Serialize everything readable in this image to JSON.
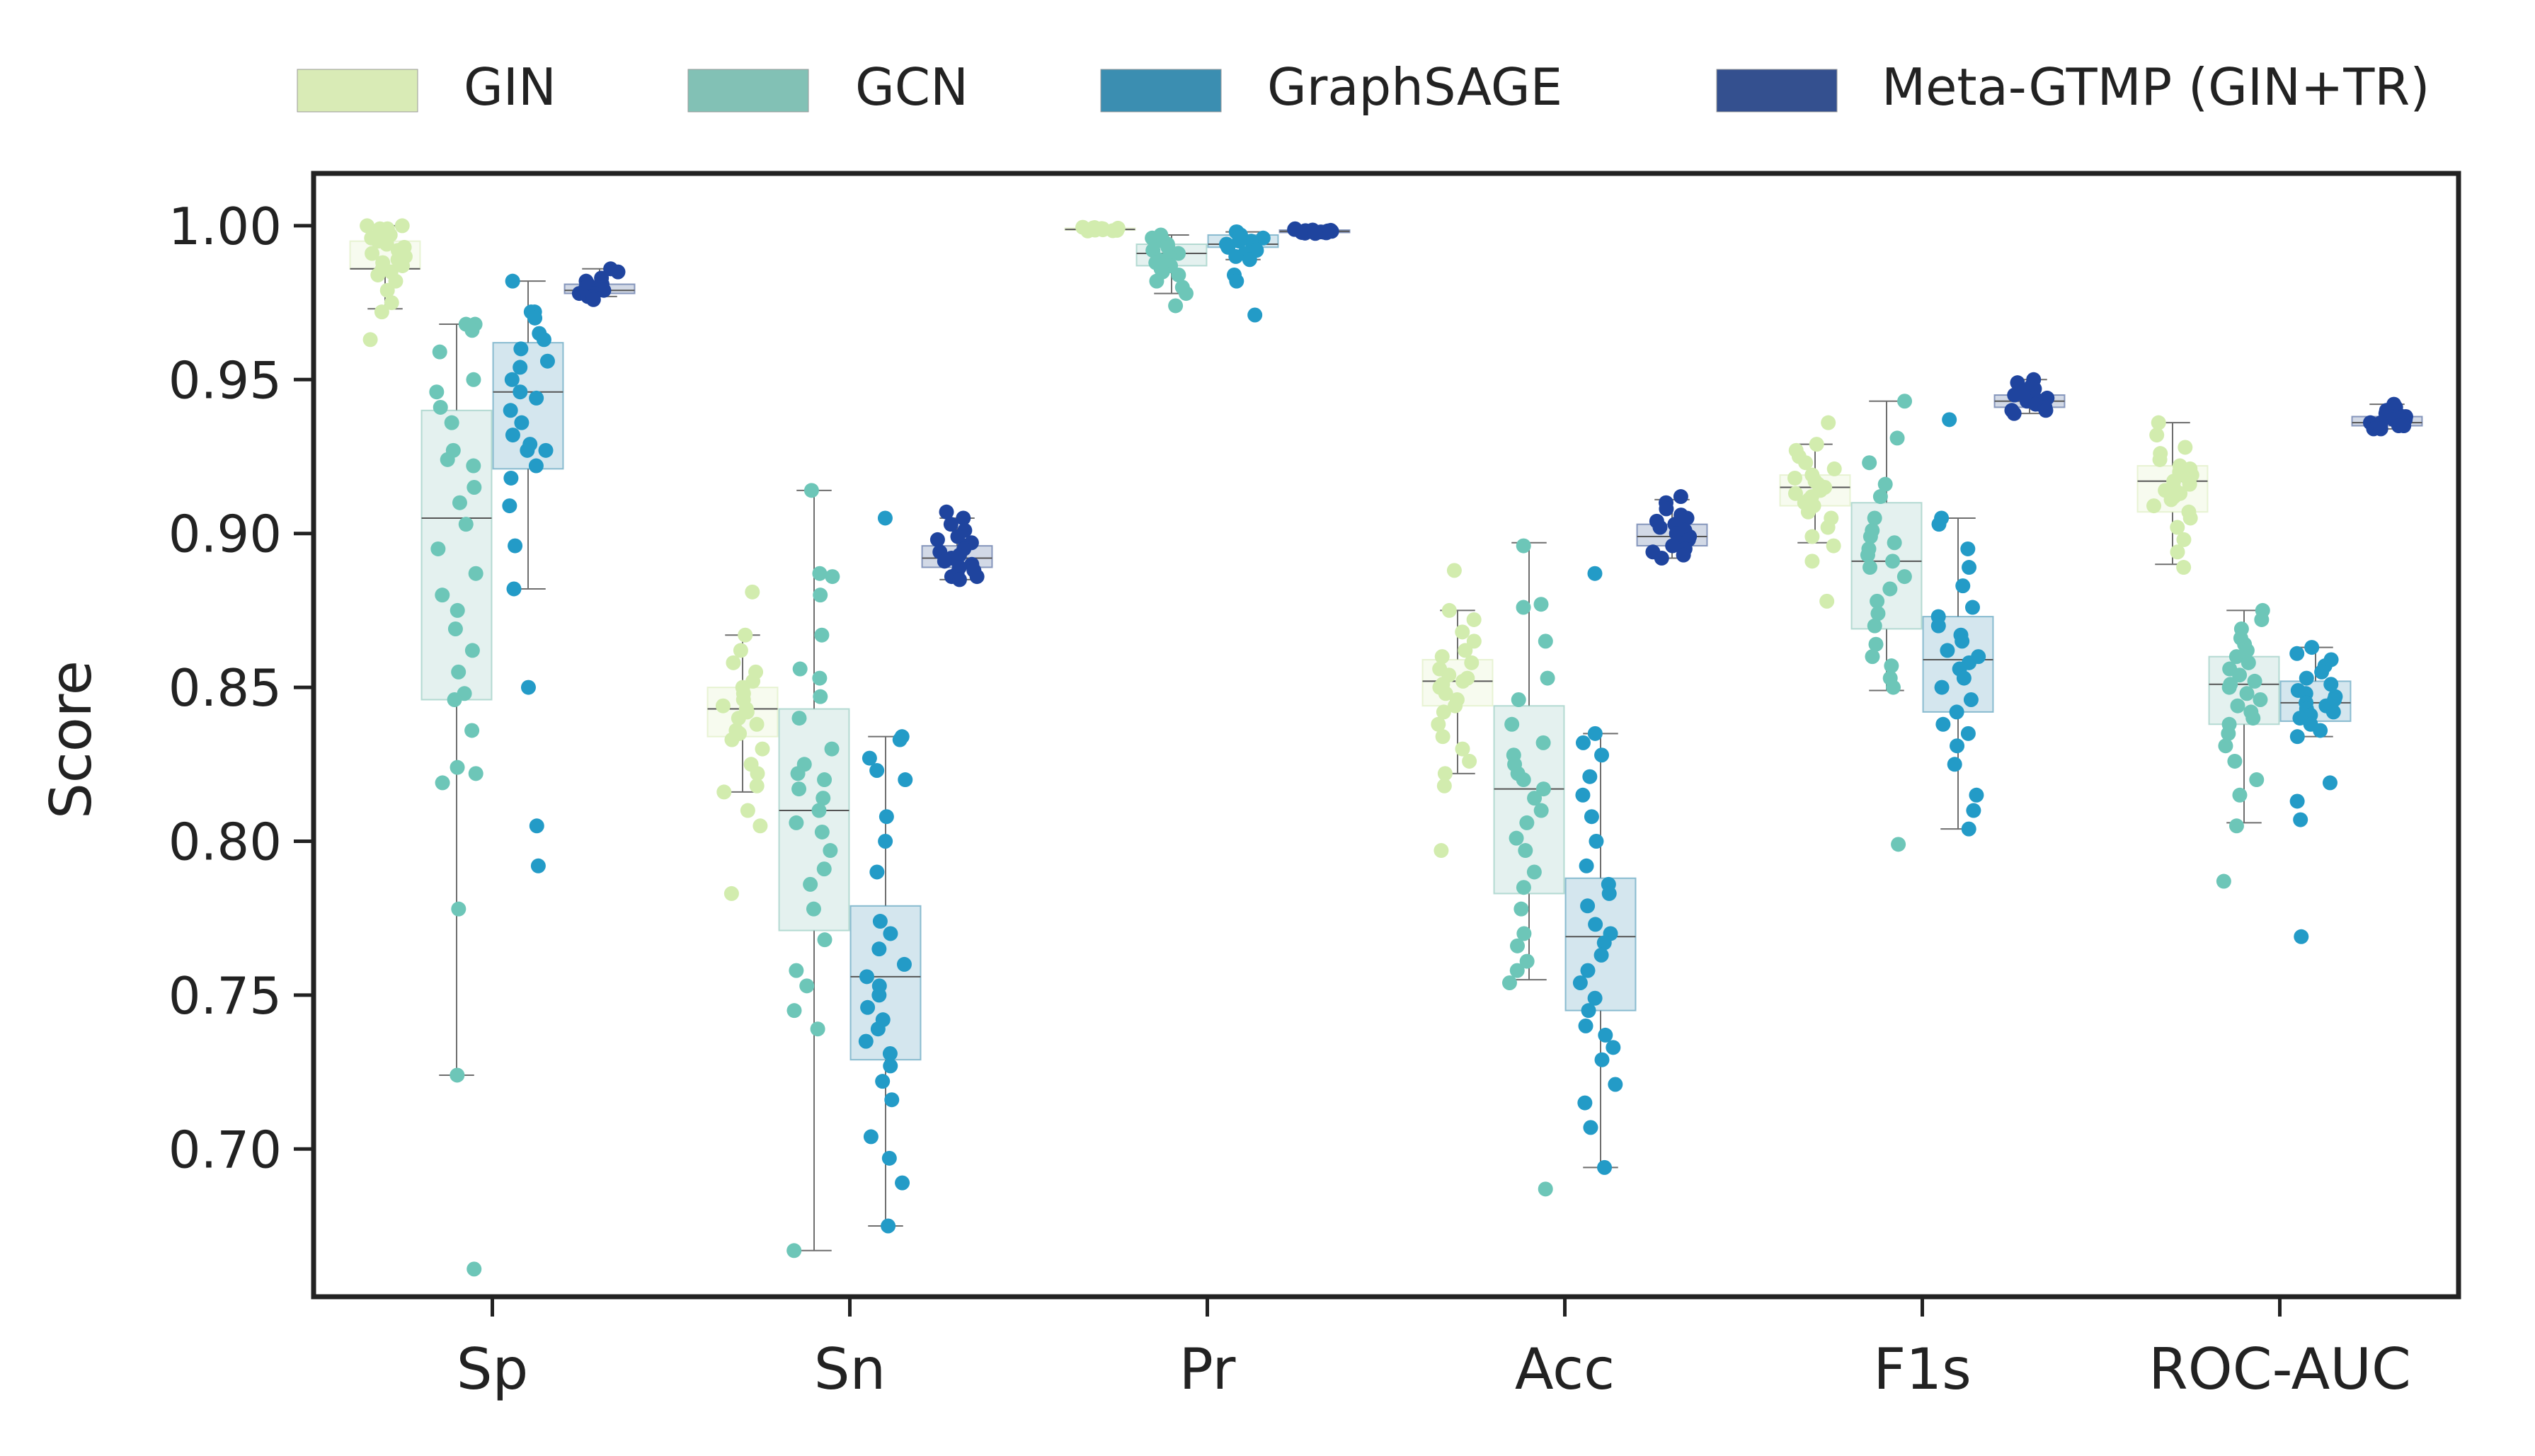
{
  "chart_data": {
    "type": "box",
    "title": "",
    "xlabel": "",
    "ylabel": "Score",
    "ylim": [
      0.652,
      1.017
    ],
    "yticks": [
      "1.00",
      "0.95",
      "0.90",
      "0.85",
      "0.80",
      "0.75",
      "0.70"
    ],
    "categories": [
      "Sp",
      "Sn",
      "Pr",
      "Acc",
      "F1s",
      "ROC-AUC"
    ],
    "legend": {
      "position": "top",
      "entries": [
        "GIN",
        "GCN",
        "GraphSAGE",
        "Meta-GTMP (GIN+TR)"
      ]
    },
    "series": [
      {
        "name": "GIN",
        "fill": "#d9ebb6",
        "point": "#d2ecae",
        "boxes": [
          {
            "q1": 0.986,
            "median": 0.986,
            "q3": 0.995,
            "wlo": 0.973,
            "whi": 1.0,
            "points": [
              1.0,
              1.0,
              0.999,
              0.999,
              0.998,
              0.997,
              0.996,
              0.995,
              0.994,
              0.993,
              0.992,
              0.991,
              0.99,
              0.989,
              0.988,
              0.987,
              0.986,
              0.985,
              0.984,
              0.982,
              0.979,
              0.975,
              0.972,
              0.963
            ]
          },
          {
            "q1": 0.834,
            "median": 0.843,
            "q3": 0.85,
            "wlo": 0.816,
            "whi": 0.867,
            "points": [
              0.881,
              0.867,
              0.862,
              0.858,
              0.855,
              0.852,
              0.85,
              0.848,
              0.846,
              0.844,
              0.843,
              0.842,
              0.84,
              0.838,
              0.836,
              0.835,
              0.833,
              0.83,
              0.825,
              0.822,
              0.818,
              0.816,
              0.81,
              0.805,
              0.783
            ]
          },
          {
            "q1": 0.9986,
            "median": 0.9988,
            "q3": 0.9992,
            "wlo": 0.9983,
            "whi": 0.9995,
            "points": [
              0.9995,
              0.9994,
              0.9993,
              0.9992,
              0.9991,
              0.999,
              0.9989,
              0.9988,
              0.9987,
              0.9986,
              0.9985,
              0.9984,
              0.9983
            ]
          },
          {
            "q1": 0.844,
            "median": 0.852,
            "q3": 0.859,
            "wlo": 0.822,
            "whi": 0.875,
            "points": [
              0.888,
              0.875,
              0.872,
              0.868,
              0.865,
              0.862,
              0.86,
              0.858,
              0.856,
              0.854,
              0.853,
              0.852,
              0.851,
              0.85,
              0.848,
              0.846,
              0.844,
              0.842,
              0.838,
              0.834,
              0.83,
              0.826,
              0.822,
              0.818,
              0.797
            ]
          },
          {
            "q1": 0.909,
            "median": 0.915,
            "q3": 0.919,
            "wlo": 0.897,
            "whi": 0.929,
            "points": [
              0.936,
              0.929,
              0.927,
              0.925,
              0.923,
              0.921,
              0.919,
              0.918,
              0.917,
              0.916,
              0.915,
              0.914,
              0.913,
              0.912,
              0.911,
              0.91,
              0.909,
              0.907,
              0.905,
              0.902,
              0.899,
              0.896,
              0.891,
              0.878
            ]
          },
          {
            "q1": 0.907,
            "median": 0.917,
            "q3": 0.922,
            "wlo": 0.89,
            "whi": 0.936,
            "points": [
              0.936,
              0.932,
              0.928,
              0.926,
              0.924,
              0.922,
              0.921,
              0.92,
              0.919,
              0.918,
              0.917,
              0.916,
              0.915,
              0.914,
              0.913,
              0.912,
              0.911,
              0.909,
              0.907,
              0.905,
              0.902,
              0.898,
              0.894,
              0.889
            ]
          }
        ]
      },
      {
        "name": "GCN",
        "fill": "#82c1b5",
        "point": "#6dc6b8",
        "boxes": [
          {
            "q1": 0.846,
            "median": 0.905,
            "q3": 0.94,
            "wlo": 0.724,
            "whi": 0.968,
            "points": [
              0.968,
              0.968,
              0.966,
              0.959,
              0.95,
              0.946,
              0.941,
              0.936,
              0.927,
              0.924,
              0.922,
              0.915,
              0.91,
              0.903,
              0.895,
              0.887,
              0.88,
              0.875,
              0.869,
              0.862,
              0.855,
              0.848,
              0.846,
              0.836,
              0.824,
              0.822,
              0.819,
              0.778,
              0.724,
              0.661
            ]
          },
          {
            "q1": 0.771,
            "median": 0.81,
            "q3": 0.843,
            "wlo": 0.667,
            "whi": 0.914,
            "points": [
              0.914,
              0.887,
              0.886,
              0.88,
              0.867,
              0.856,
              0.853,
              0.847,
              0.84,
              0.83,
              0.825,
              0.822,
              0.82,
              0.817,
              0.814,
              0.81,
              0.806,
              0.803,
              0.797,
              0.791,
              0.786,
              0.778,
              0.768,
              0.758,
              0.753,
              0.745,
              0.739,
              0.667
            ]
          },
          {
            "q1": 0.987,
            "median": 0.991,
            "q3": 0.994,
            "wlo": 0.978,
            "whi": 0.997,
            "points": [
              0.997,
              0.996,
              0.995,
              0.994,
              0.993,
              0.992,
              0.991,
              0.99,
              0.989,
              0.988,
              0.987,
              0.986,
              0.985,
              0.984,
              0.982,
              0.98,
              0.978,
              0.974
            ]
          },
          {
            "q1": 0.783,
            "median": 0.817,
            "q3": 0.844,
            "wlo": 0.755,
            "whi": 0.897,
            "points": [
              0.896,
              0.877,
              0.876,
              0.865,
              0.853,
              0.846,
              0.838,
              0.832,
              0.828,
              0.825,
              0.822,
              0.82,
              0.817,
              0.814,
              0.81,
              0.806,
              0.801,
              0.797,
              0.79,
              0.785,
              0.778,
              0.77,
              0.766,
              0.761,
              0.758,
              0.754,
              0.687
            ]
          },
          {
            "q1": 0.869,
            "median": 0.891,
            "q3": 0.91,
            "wlo": 0.849,
            "whi": 0.943,
            "points": [
              0.943,
              0.931,
              0.923,
              0.916,
              0.912,
              0.905,
              0.901,
              0.899,
              0.897,
              0.895,
              0.893,
              0.891,
              0.889,
              0.886,
              0.882,
              0.878,
              0.874,
              0.87,
              0.864,
              0.86,
              0.857,
              0.853,
              0.85,
              0.799
            ]
          },
          {
            "q1": 0.838,
            "median": 0.851,
            "q3": 0.86,
            "wlo": 0.806,
            "whi": 0.875,
            "points": [
              0.875,
              0.872,
              0.869,
              0.866,
              0.864,
              0.862,
              0.86,
              0.858,
              0.856,
              0.854,
              0.852,
              0.851,
              0.85,
              0.848,
              0.846,
              0.844,
              0.842,
              0.84,
              0.838,
              0.835,
              0.831,
              0.826,
              0.82,
              0.815,
              0.805,
              0.787
            ]
          }
        ]
      },
      {
        "name": "GraphSAGE",
        "fill": "#3b8eb1",
        "point": "#239bc7",
        "boxes": [
          {
            "q1": 0.921,
            "median": 0.946,
            "q3": 0.962,
            "wlo": 0.882,
            "whi": 0.982,
            "points": [
              0.982,
              0.972,
              0.972,
              0.97,
              0.965,
              0.963,
              0.96,
              0.956,
              0.954,
              0.95,
              0.946,
              0.944,
              0.94,
              0.936,
              0.932,
              0.929,
              0.927,
              0.927,
              0.922,
              0.918,
              0.909,
              0.896,
              0.882,
              0.85,
              0.805,
              0.792
            ]
          },
          {
            "q1": 0.729,
            "median": 0.756,
            "q3": 0.779,
            "wlo": 0.675,
            "whi": 0.834,
            "points": [
              0.905,
              0.834,
              0.833,
              0.827,
              0.823,
              0.82,
              0.808,
              0.8,
              0.79,
              0.774,
              0.77,
              0.765,
              0.76,
              0.756,
              0.753,
              0.75,
              0.746,
              0.742,
              0.739,
              0.735,
              0.731,
              0.727,
              0.722,
              0.716,
              0.704,
              0.697,
              0.689,
              0.675
            ]
          },
          {
            "q1": 0.993,
            "median": 0.994,
            "q3": 0.997,
            "wlo": 0.989,
            "whi": 0.998,
            "points": [
              0.998,
              0.998,
              0.997,
              0.997,
              0.996,
              0.996,
              0.995,
              0.995,
              0.994,
              0.993,
              0.992,
              0.991,
              0.99,
              0.989,
              0.984,
              0.982,
              0.971
            ]
          },
          {
            "q1": 0.745,
            "median": 0.769,
            "q3": 0.788,
            "wlo": 0.694,
            "whi": 0.835,
            "points": [
              0.887,
              0.835,
              0.832,
              0.828,
              0.821,
              0.815,
              0.808,
              0.8,
              0.792,
              0.786,
              0.783,
              0.779,
              0.773,
              0.77,
              0.767,
              0.763,
              0.758,
              0.754,
              0.749,
              0.745,
              0.74,
              0.737,
              0.733,
              0.729,
              0.721,
              0.715,
              0.707,
              0.694
            ]
          },
          {
            "q1": 0.842,
            "median": 0.859,
            "q3": 0.873,
            "wlo": 0.804,
            "whi": 0.905,
            "points": [
              0.937,
              0.905,
              0.903,
              0.895,
              0.889,
              0.883,
              0.876,
              0.873,
              0.87,
              0.867,
              0.865,
              0.862,
              0.86,
              0.858,
              0.856,
              0.853,
              0.85,
              0.846,
              0.842,
              0.838,
              0.835,
              0.831,
              0.825,
              0.815,
              0.81,
              0.804
            ]
          },
          {
            "q1": 0.839,
            "median": 0.845,
            "q3": 0.852,
            "wlo": 0.834,
            "whi": 0.863,
            "points": [
              0.863,
              0.861,
              0.859,
              0.857,
              0.855,
              0.853,
              0.851,
              0.849,
              0.848,
              0.847,
              0.846,
              0.845,
              0.844,
              0.843,
              0.842,
              0.841,
              0.84,
              0.838,
              0.836,
              0.834,
              0.819,
              0.813,
              0.807,
              0.769
            ]
          }
        ]
      },
      {
        "name": "Meta-GTMP (GIN+TR)",
        "fill": "#34508f",
        "point": "#1f449e",
        "boxes": [
          {
            "q1": 0.978,
            "median": 0.979,
            "q3": 0.981,
            "wlo": 0.977,
            "whi": 0.986,
            "points": [
              0.986,
              0.985,
              0.983,
              0.982,
              0.981,
              0.981,
              0.98,
              0.98,
              0.979,
              0.979,
              0.978,
              0.978,
              0.977,
              0.977,
              0.977,
              0.976
            ]
          },
          {
            "q1": 0.889,
            "median": 0.892,
            "q3": 0.896,
            "wlo": 0.885,
            "whi": 0.905,
            "points": [
              0.907,
              0.905,
              0.903,
              0.901,
              0.899,
              0.898,
              0.897,
              0.896,
              0.895,
              0.894,
              0.893,
              0.892,
              0.891,
              0.89,
              0.889,
              0.888,
              0.887,
              0.886,
              0.886,
              0.885
            ]
          },
          {
            "q1": 0.9978,
            "median": 0.9982,
            "q3": 0.9986,
            "wlo": 0.9975,
            "whi": 0.999,
            "points": [
              0.999,
              0.9988,
              0.9986,
              0.9985,
              0.9984,
              0.9983,
              0.9982,
              0.9981,
              0.998,
              0.9979,
              0.9978,
              0.9977,
              0.9976,
              0.9975
            ]
          },
          {
            "q1": 0.896,
            "median": 0.899,
            "q3": 0.903,
            "wlo": 0.892,
            "whi": 0.911,
            "points": [
              0.912,
              0.91,
              0.908,
              0.906,
              0.905,
              0.904,
              0.903,
              0.902,
              0.901,
              0.9,
              0.899,
              0.898,
              0.897,
              0.896,
              0.895,
              0.894,
              0.893,
              0.892
            ]
          },
          {
            "q1": 0.941,
            "median": 0.943,
            "q3": 0.945,
            "wlo": 0.939,
            "whi": 0.95,
            "points": [
              0.95,
              0.949,
              0.948,
              0.947,
              0.946,
              0.945,
              0.944,
              0.944,
              0.943,
              0.943,
              0.942,
              0.942,
              0.941,
              0.94,
              0.94,
              0.939
            ]
          },
          {
            "q1": 0.935,
            "median": 0.936,
            "q3": 0.938,
            "wlo": 0.934,
            "whi": 0.942,
            "points": [
              0.942,
              0.941,
              0.94,
              0.939,
              0.938,
              0.938,
              0.937,
              0.937,
              0.936,
              0.936,
              0.935,
              0.935,
              0.934,
              0.934
            ]
          }
        ]
      }
    ]
  }
}
